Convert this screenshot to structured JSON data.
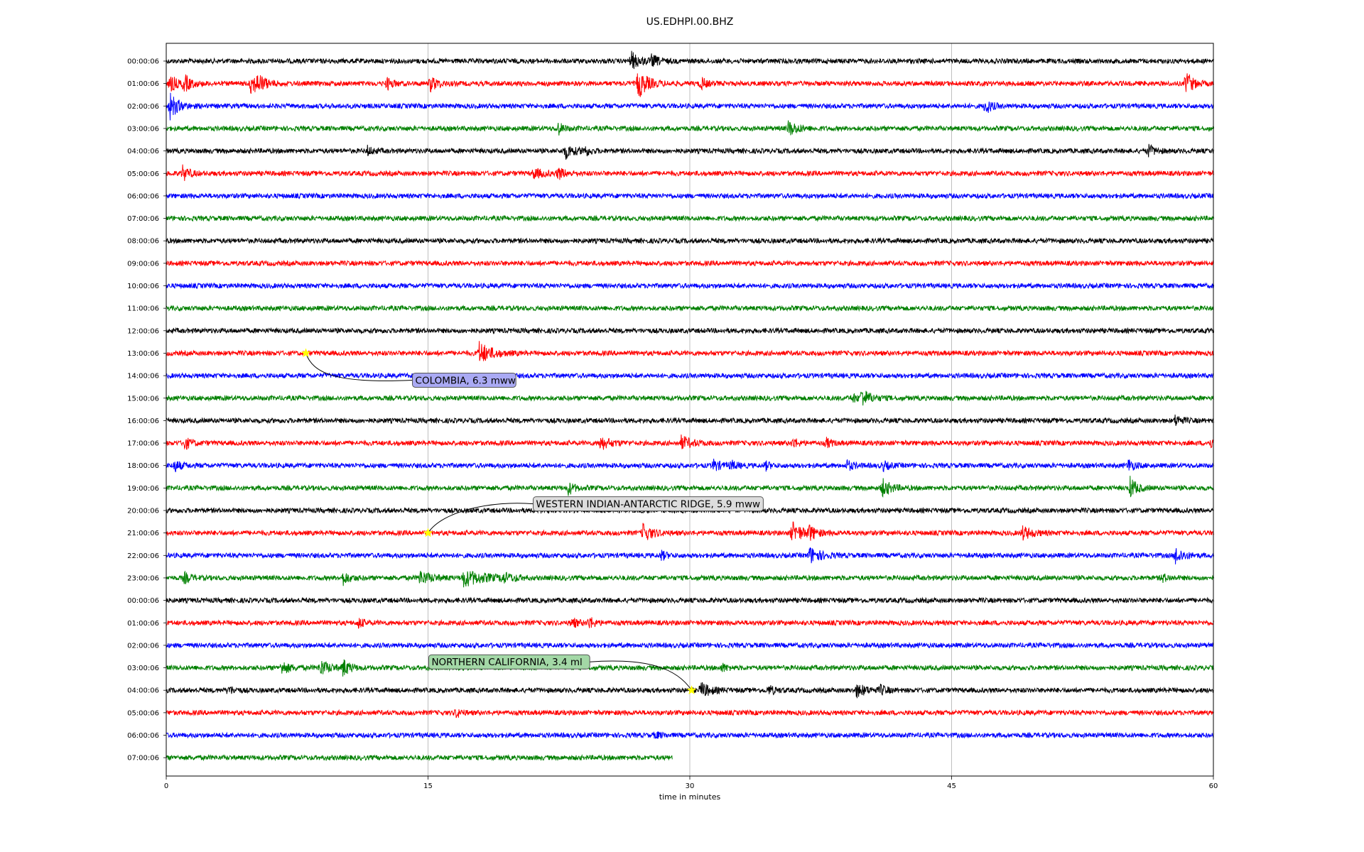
{
  "chart_data": {
    "type": "line",
    "title": "US.EDHPI.00.BHZ",
    "xlabel": "time in minutes",
    "ylabel": "",
    "xlim": [
      0,
      60
    ],
    "x_ticks": [
      "0",
      "15",
      "30",
      "45",
      "60"
    ],
    "grid": "vertical",
    "line_colors": [
      "#000000",
      "#ff0000",
      "#0000ff",
      "#008000"
    ],
    "series": [
      {
        "label": "00:00:06",
        "x_end": 60,
        "bursts": [
          [
            26.6,
            2.0,
            1.0
          ],
          [
            27.8,
            1.2,
            0.6
          ]
        ]
      },
      {
        "label": "01:00:06",
        "x_end": 60,
        "bursts": [
          [
            0.2,
            2.0,
            0.6
          ],
          [
            1.0,
            2.0,
            0.6
          ],
          [
            4.8,
            2.5,
            1.0
          ],
          [
            5.2,
            1.5,
            0.6
          ],
          [
            12.6,
            1.5,
            0.5
          ],
          [
            15.1,
            1.8,
            0.7
          ],
          [
            27.0,
            3.5,
            1.0
          ],
          [
            30.6,
            1.5,
            0.4
          ],
          [
            58.4,
            3.0,
            0.6
          ]
        ]
      },
      {
        "label": "02:00:06",
        "x_end": 60,
        "bursts": [
          [
            0.2,
            3.0,
            0.8
          ],
          [
            46.9,
            2.0,
            0.5
          ]
        ]
      },
      {
        "label": "03:00:06",
        "x_end": 60,
        "bursts": [
          [
            22.4,
            1.5,
            0.4
          ],
          [
            35.6,
            1.8,
            1.0
          ]
        ]
      },
      {
        "label": "04:00:06",
        "x_end": 60,
        "bursts": [
          [
            11.5,
            1.0,
            0.5
          ],
          [
            22.8,
            1.8,
            0.9
          ],
          [
            23.9,
            1.2,
            0.4
          ],
          [
            56.2,
            1.5,
            0.6
          ]
        ]
      },
      {
        "label": "05:00:06",
        "x_end": 60,
        "bursts": [
          [
            0.9,
            1.8,
            0.6
          ],
          [
            21.0,
            1.2,
            1.0
          ],
          [
            22.4,
            1.4,
            0.7
          ]
        ]
      },
      {
        "label": "06:00:06",
        "x_end": 60,
        "bursts": []
      },
      {
        "label": "07:00:06",
        "x_end": 60,
        "bursts": []
      },
      {
        "label": "08:00:06",
        "x_end": 60,
        "bursts": []
      },
      {
        "label": "09:00:06",
        "x_end": 60,
        "bursts": []
      },
      {
        "label": "10:00:06",
        "x_end": 60,
        "bursts": []
      },
      {
        "label": "11:00:06",
        "x_end": 60,
        "bursts": []
      },
      {
        "label": "12:00:06",
        "x_end": 60,
        "bursts": []
      },
      {
        "label": "13:00:06",
        "x_end": 60,
        "bursts": [
          [
            17.9,
            2.5,
            1.5
          ]
        ]
      },
      {
        "label": "14:00:06",
        "x_end": 60,
        "bursts": []
      },
      {
        "label": "15:00:06",
        "x_end": 60,
        "bursts": [
          [
            39.3,
            1.0,
            0.4
          ],
          [
            39.8,
            2.0,
            1.0
          ]
        ]
      },
      {
        "label": "16:00:06",
        "x_end": 60,
        "bursts": [
          [
            57.8,
            1.2,
            0.6
          ]
        ]
      },
      {
        "label": "17:00:06",
        "x_end": 60,
        "bursts": [
          [
            1.0,
            1.5,
            0.6
          ],
          [
            24.8,
            1.5,
            1.2
          ],
          [
            29.5,
            1.5,
            1.2
          ],
          [
            35.9,
            1.2,
            0.3
          ],
          [
            37.8,
            1.2,
            0.3
          ],
          [
            59.8,
            1.0,
            0.4
          ]
        ]
      },
      {
        "label": "18:00:06",
        "x_end": 60,
        "bursts": [
          [
            0.4,
            1.5,
            0.6
          ],
          [
            31.3,
            1.5,
            0.6
          ],
          [
            32.3,
            1.0,
            0.6
          ],
          [
            34.3,
            1.0,
            0.3
          ],
          [
            39.0,
            1.2,
            0.5
          ],
          [
            41.0,
            1.2,
            0.5
          ],
          [
            55.1,
            1.5,
            0.5
          ]
        ]
      },
      {
        "label": "19:00:06",
        "x_end": 60,
        "bursts": [
          [
            23.0,
            1.5,
            0.5
          ],
          [
            41.0,
            2.0,
            0.9
          ],
          [
            55.2,
            2.5,
            0.6
          ]
        ]
      },
      {
        "label": "20:00:06",
        "x_end": 60,
        "bursts": []
      },
      {
        "label": "21:00:06",
        "x_end": 60,
        "bursts": [
          [
            27.3,
            2.0,
            1.0
          ],
          [
            35.8,
            2.5,
            1.3
          ],
          [
            36.8,
            1.5,
            0.6
          ],
          [
            49.0,
            1.5,
            1.2
          ]
        ]
      },
      {
        "label": "22:00:06",
        "x_end": 60,
        "bursts": [
          [
            28.3,
            1.2,
            0.4
          ],
          [
            36.8,
            2.0,
            1.2
          ],
          [
            57.8,
            2.0,
            0.8
          ]
        ]
      },
      {
        "label": "23:00:06",
        "x_end": 60,
        "bursts": [
          [
            1.0,
            1.2,
            0.6
          ],
          [
            10.1,
            1.5,
            0.6
          ],
          [
            14.5,
            1.5,
            1.5
          ],
          [
            17.0,
            1.8,
            3.0
          ],
          [
            19.2,
            1.2,
            1.5
          ],
          [
            57.0,
            1.0,
            0.5
          ]
        ]
      },
      {
        "label": "00:00:06",
        "x_end": 60,
        "bursts": []
      },
      {
        "label": "01:00:06",
        "x_end": 60,
        "bursts": [
          [
            11.0,
            1.2,
            0.4
          ],
          [
            23.2,
            1.2,
            0.5
          ],
          [
            24.2,
            1.4,
            0.4
          ]
        ]
      },
      {
        "label": "02:00:06",
        "x_end": 60,
        "bursts": []
      },
      {
        "label": "03:00:06",
        "x_end": 60,
        "bursts": [
          [
            6.6,
            1.5,
            0.8
          ],
          [
            8.8,
            1.8,
            1.0
          ],
          [
            10.1,
            2.0,
            0.6
          ],
          [
            31.8,
            1.0,
            0.4
          ]
        ]
      },
      {
        "label": "04:00:06",
        "x_end": 60,
        "bursts": [
          [
            3.5,
            1.0,
            0.5
          ],
          [
            30.6,
            1.8,
            1.0
          ],
          [
            34.5,
            1.0,
            0.6
          ],
          [
            39.5,
            1.5,
            1.2
          ],
          [
            40.9,
            1.0,
            0.6
          ]
        ]
      },
      {
        "label": "05:00:06",
        "x_end": 60,
        "bursts": [
          [
            16.6,
            1.0,
            0.4
          ]
        ]
      },
      {
        "label": "06:00:06",
        "x_end": 60,
        "bursts": [
          [
            28.0,
            0.8,
            0.3
          ]
        ]
      },
      {
        "label": "07:00:06",
        "x_end": 29.0,
        "bursts": []
      }
    ],
    "events": [
      {
        "text": "COLOMBIA, 6.3 mww",
        "row": 13,
        "x": 8.0,
        "box_color": "#aaaaf4",
        "placement": "below-right"
      },
      {
        "text": "WESTERN INDIAN-ANTARCTIC RIDGE, 5.9 mww",
        "row": 21,
        "x": 15.0,
        "box_color": "#dddddd",
        "placement": "above-right"
      },
      {
        "text": "NORTHERN CALIFORNIA, 3.4 ml",
        "row": 28,
        "x": 30.1,
        "box_color": "#a3d8a6",
        "placement": "above-left"
      }
    ],
    "event_marker_color": "#ffff00"
  }
}
